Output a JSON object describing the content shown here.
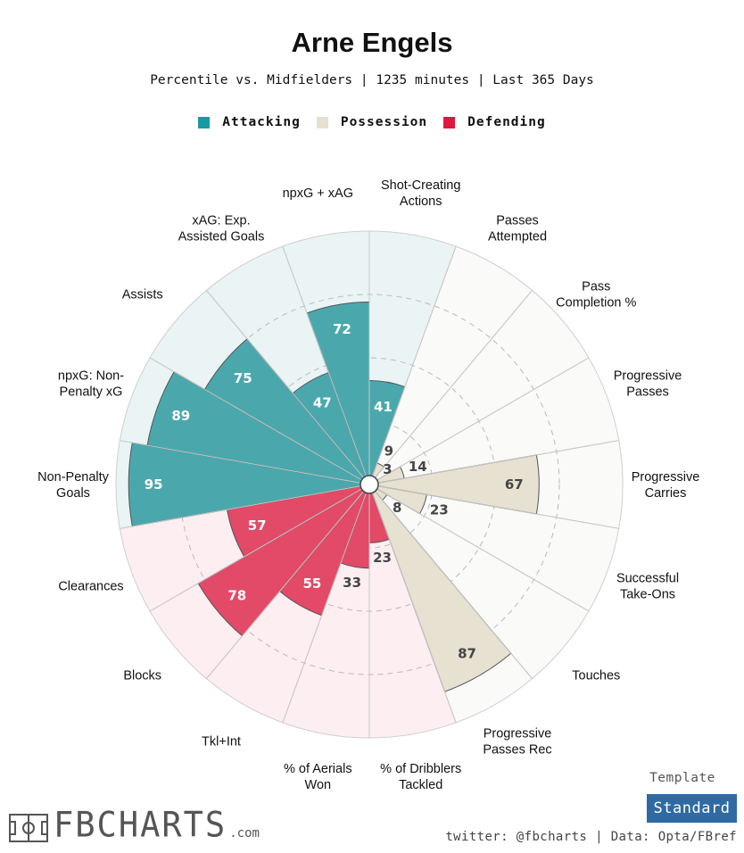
{
  "header": {
    "title": "Arne Engels",
    "subtitle": "Percentile vs. Midfielders | 1235 minutes | Last 365 Days"
  },
  "legend": [
    {
      "label": "Attacking",
      "color": "#1a9aa0"
    },
    {
      "label": "Possession",
      "color": "#e6e0ce"
    },
    {
      "label": "Defending",
      "color": "#e0173f"
    }
  ],
  "chart_data": {
    "type": "polar_bar",
    "title": "Arne Engels",
    "subtitle": "Percentile vs. Midfielders | 1235 minutes | Last 365 Days",
    "rlim": [
      0,
      100
    ],
    "grid": true,
    "legend_position": "top-center",
    "categories": [
      {
        "label": "Shot-Creating Actions",
        "lines": [
          "Shot-Creating",
          "Actions"
        ],
        "value": 41,
        "group": "Attacking"
      },
      {
        "label": "Passes Attempted",
        "lines": [
          "Passes",
          "Attempted"
        ],
        "value": 9,
        "group": "Possession"
      },
      {
        "label": "Pass Completion %",
        "lines": [
          "Pass",
          "Completion %"
        ],
        "value": 3,
        "group": "Possession"
      },
      {
        "label": "Progressive Passes",
        "lines": [
          "Progressive",
          "Passes"
        ],
        "value": 14,
        "group": "Possession"
      },
      {
        "label": "Progressive Carries",
        "lines": [
          "Progressive",
          "Carries"
        ],
        "value": 67,
        "group": "Possession"
      },
      {
        "label": "Successful Take-Ons",
        "lines": [
          "Successful",
          "Take-Ons"
        ],
        "value": 23,
        "group": "Possession"
      },
      {
        "label": "Touches",
        "lines": [
          "Touches"
        ],
        "value": 8,
        "group": "Possession"
      },
      {
        "label": "Progressive Passes Rec",
        "lines": [
          "Progressive",
          "Passes Rec"
        ],
        "value": 87,
        "group": "Possession"
      },
      {
        "label": "% of Dribblers Tackled",
        "lines": [
          "% of Dribblers",
          "Tackled"
        ],
        "value": 23,
        "group": "Defending"
      },
      {
        "label": "% of Aerials Won",
        "lines": [
          "% of Aerials",
          "Won"
        ],
        "value": 33,
        "group": "Defending"
      },
      {
        "label": "Tkl+Int",
        "lines": [
          "Tkl+Int"
        ],
        "value": 55,
        "group": "Defending"
      },
      {
        "label": "Blocks",
        "lines": [
          "Blocks"
        ],
        "value": 78,
        "group": "Defending"
      },
      {
        "label": "Clearances",
        "lines": [
          "Clearances"
        ],
        "value": 57,
        "group": "Defending"
      },
      {
        "label": "Non-Penalty Goals",
        "lines": [
          "Non-Penalty",
          "Goals"
        ],
        "value": 95,
        "group": "Attacking"
      },
      {
        "label": "npxG: Non-Penalty xG",
        "lines": [
          "npxG: Non-",
          "Penalty xG"
        ],
        "value": 89,
        "group": "Attacking"
      },
      {
        "label": "Assists",
        "lines": [
          "Assists"
        ],
        "value": 75,
        "group": "Attacking"
      },
      {
        "label": "xAG: Exp. Assisted Goals",
        "lines": [
          "xAG: Exp.",
          "Assisted Goals"
        ],
        "value": 47,
        "group": "Attacking"
      },
      {
        "label": "npxG + xAG",
        "lines": [
          "npxG + xAG"
        ],
        "value": 72,
        "group": "Attacking"
      }
    ],
    "group_colors": {
      "Attacking": {
        "bar": "#4aa8ad",
        "bg": "#eaf4f5"
      },
      "Possession": {
        "bar": "#e6e1d1",
        "bg": "#fafaf9"
      },
      "Defending": {
        "bar": "#e24a67",
        "bg": "#fdeef1"
      }
    }
  },
  "footer": {
    "template_label": "Template",
    "template_button": "Standard",
    "credit": "twitter: @fbcharts | Data: Opta/FBref",
    "logo_text": "FBCHARTS",
    "logo_suffix": ".com"
  }
}
